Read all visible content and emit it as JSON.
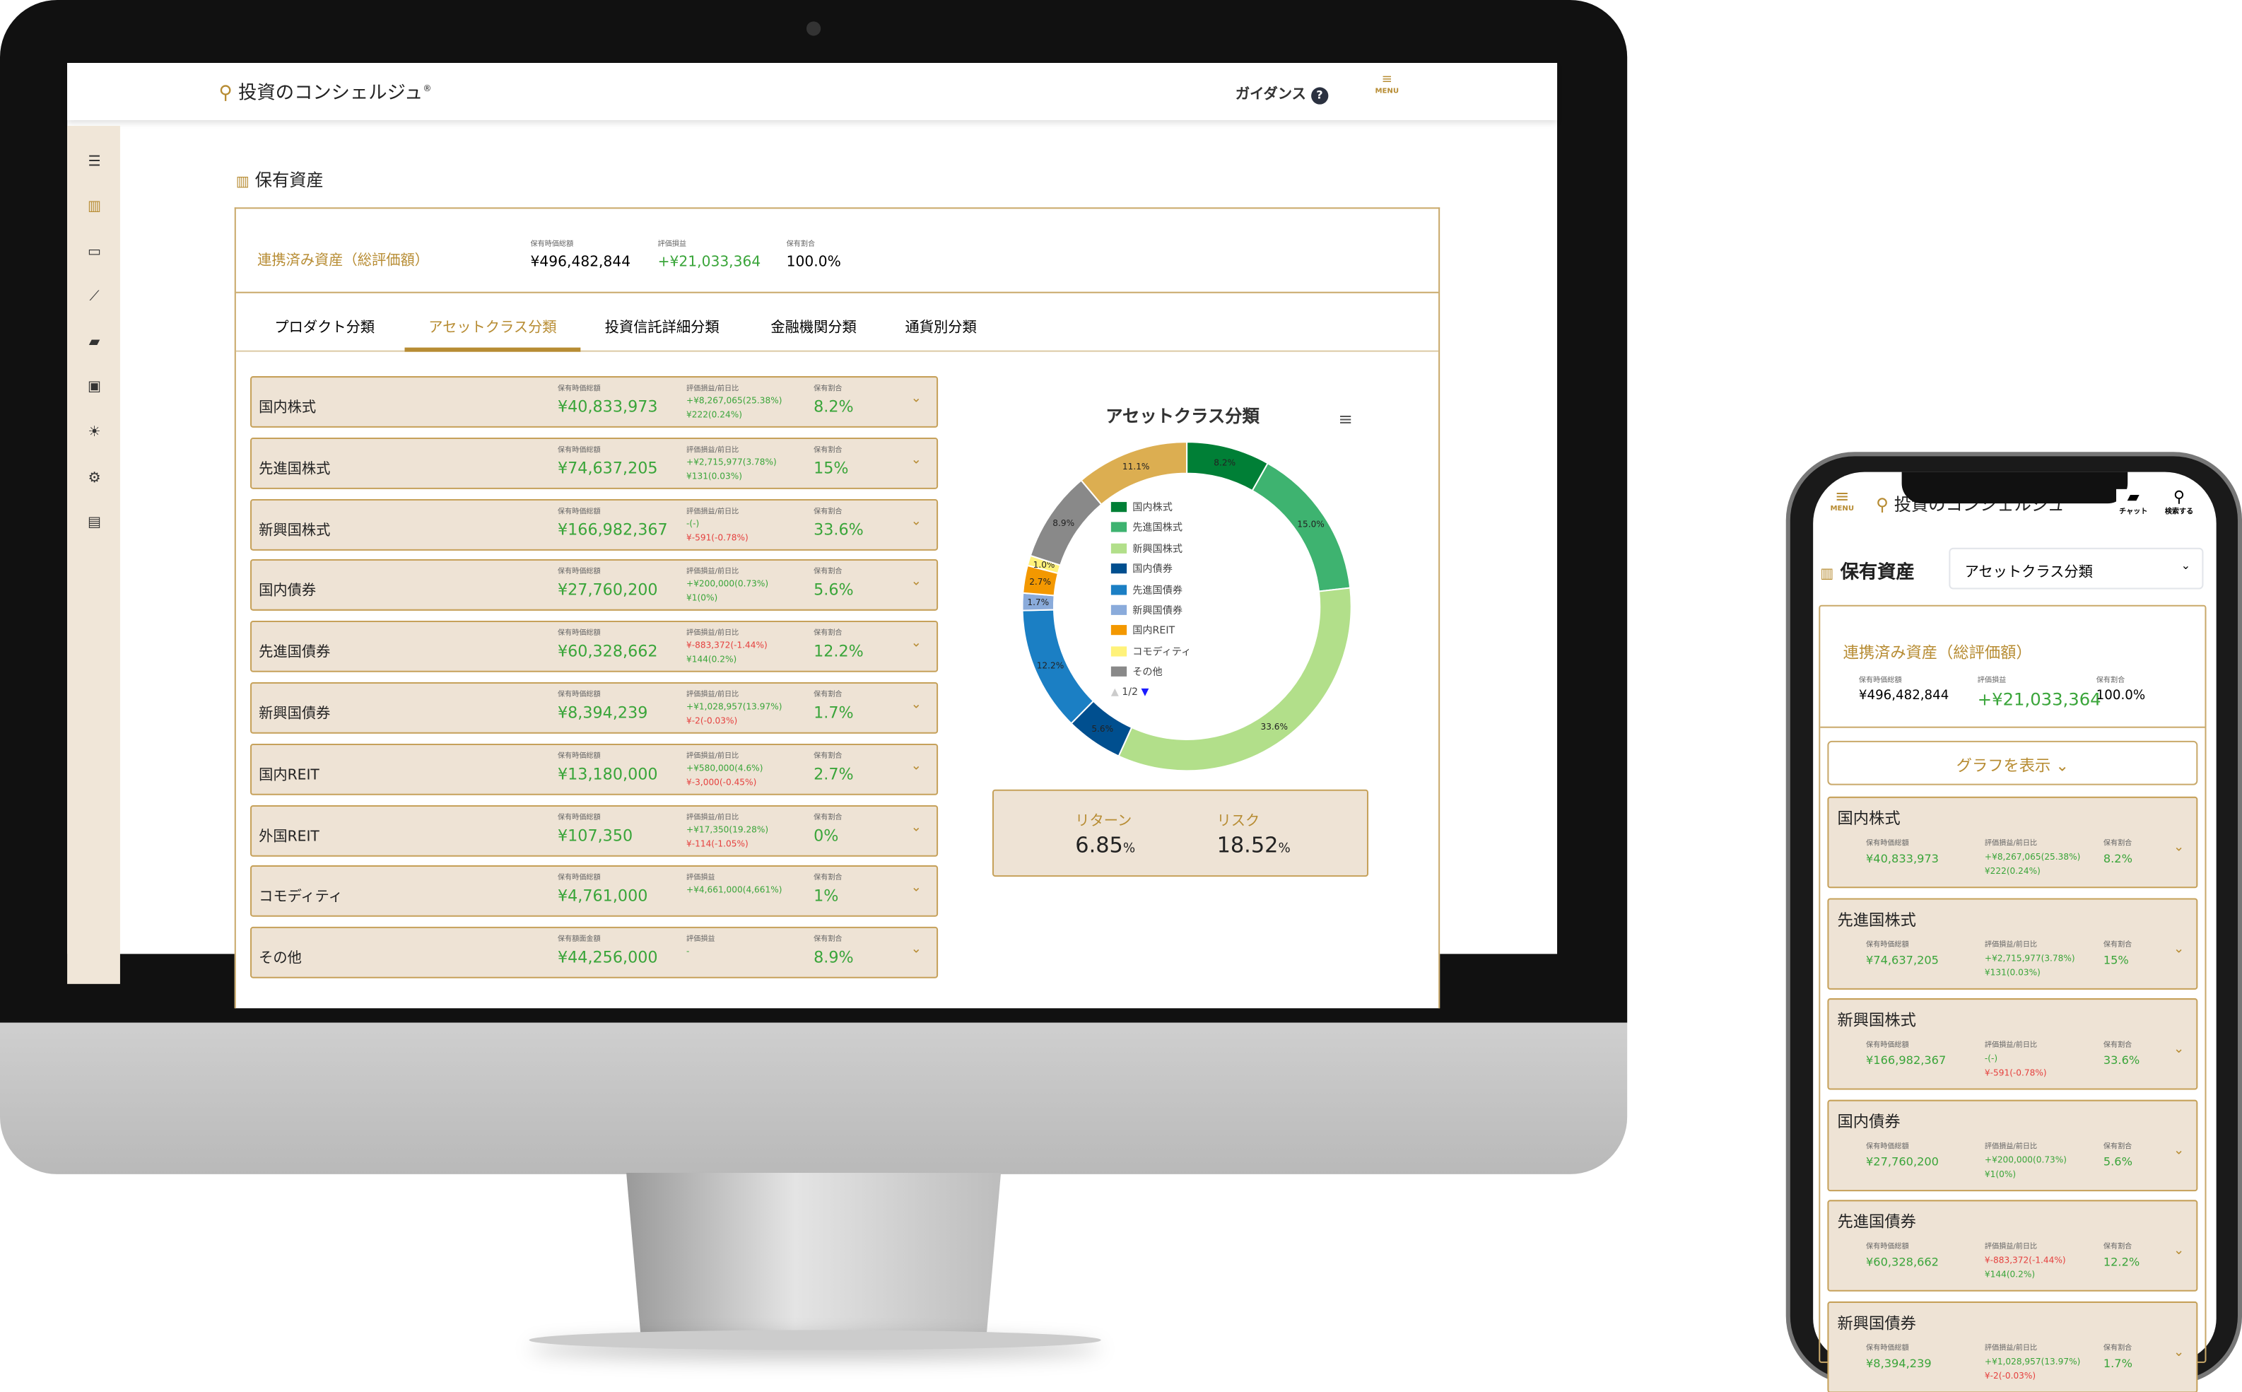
{
  "app": {
    "logo": "投資のコンシェルジュ",
    "registered": "®",
    "guidance": "ガイダンス",
    "guidance_icon": "?",
    "menu": "MENU"
  },
  "sidebar": {
    "icons": [
      "hamburger-icon",
      "chart-icon",
      "card-icon",
      "line-chart-icon",
      "chat-icon",
      "contact-icon",
      "bulb-icon",
      "gear-icon",
      "document-icon"
    ]
  },
  "page": {
    "title": "保有資産"
  },
  "summary": {
    "title": "連携済み資産（総評価額）",
    "value_label": "保有時価総額",
    "value": "¥496,482,844",
    "pl_label": "評価損益",
    "pl": "+¥21,033,364",
    "ratio_label": "保有割合",
    "ratio": "100.0%"
  },
  "tabs": [
    {
      "label": "プロダクト分類"
    },
    {
      "label": "アセットクラス分類",
      "active": true
    },
    {
      "label": "投資信託詳細分類"
    },
    {
      "label": "金融機関分類"
    },
    {
      "label": "通貨別分類"
    }
  ],
  "rows": [
    {
      "name": "国内株式",
      "value_label": "保有時価総額",
      "value": "¥40,833,973",
      "pl_label": "評価損益/前日比",
      "pl": "+¥8,267,065(25.38%)",
      "pl_color": "g",
      "day": "¥222(0.24%)",
      "day_color": "g",
      "ratio_label": "保有割合",
      "ratio": "8.2%"
    },
    {
      "name": "先進国株式",
      "value_label": "保有時価総額",
      "value": "¥74,637,205",
      "pl_label": "評価損益/前日比",
      "pl": "+¥2,715,977(3.78%)",
      "pl_color": "g",
      "day": "¥131(0.03%)",
      "day_color": "g",
      "ratio_label": "保有割合",
      "ratio": "15%"
    },
    {
      "name": "新興国株式",
      "value_label": "保有時価総額",
      "value": "¥166,982,367",
      "pl_label": "評価損益/前日比",
      "pl": "-(-)",
      "pl_color": "g",
      "day": "¥-591(-0.78%)",
      "day_color": "r",
      "ratio_label": "保有割合",
      "ratio": "33.6%"
    },
    {
      "name": "国内債券",
      "value_label": "保有時価総額",
      "value": "¥27,760,200",
      "pl_label": "評価損益/前日比",
      "pl": "+¥200,000(0.73%)",
      "pl_color": "g",
      "day": "¥1(0%)",
      "day_color": "g",
      "ratio_label": "保有割合",
      "ratio": "5.6%"
    },
    {
      "name": "先進国債券",
      "value_label": "保有時価総額",
      "value": "¥60,328,662",
      "pl_label": "評価損益/前日比",
      "pl": "¥-883,372(-1.44%)",
      "pl_color": "r",
      "day": "¥144(0.2%)",
      "day_color": "g",
      "ratio_label": "保有割合",
      "ratio": "12.2%"
    },
    {
      "name": "新興国債券",
      "value_label": "保有時価総額",
      "value": "¥8,394,239",
      "pl_label": "評価損益/前日比",
      "pl": "+¥1,028,957(13.97%)",
      "pl_color": "g",
      "day": "¥-2(-0.03%)",
      "day_color": "r",
      "ratio_label": "保有割合",
      "ratio": "1.7%"
    },
    {
      "name": "国内REIT",
      "value_label": "保有時価総額",
      "value": "¥13,180,000",
      "pl_label": "評価損益/前日比",
      "pl": "+¥580,000(4.6%)",
      "pl_color": "g",
      "day": "¥-3,000(-0.45%)",
      "day_color": "r",
      "ratio_label": "保有割合",
      "ratio": "2.7%"
    },
    {
      "name": "外国REIT",
      "value_label": "保有時価総額",
      "value": "¥107,350",
      "pl_label": "評価損益/前日比",
      "pl": "+¥17,350(19.28%)",
      "pl_color": "g",
      "day": "¥-114(-1.05%)",
      "day_color": "r",
      "ratio_label": "保有割合",
      "ratio": "0%"
    },
    {
      "name": "コモディティ",
      "value_label": "保有時価総額",
      "value": "¥4,761,000",
      "pl_label": "評価損益",
      "pl": "+¥4,661,000(4,661%)",
      "pl_color": "g",
      "day": "",
      "day_color": "g",
      "ratio_label": "保有割合",
      "ratio": "1%"
    },
    {
      "name": "その他",
      "value_label": "保有額面金額",
      "value": "¥44,256,000",
      "pl_label": "評価損益",
      "pl": "-",
      "pl_color": "g",
      "day": "",
      "day_color": "g",
      "ratio_label": "保有割合",
      "ratio": "8.9%"
    }
  ],
  "chart_data": {
    "type": "pie",
    "title": "アセットクラス分類",
    "donut": true,
    "slices": [
      {
        "name": "国内株式",
        "value": 8.2,
        "label": "8.2%",
        "color": "#007f36"
      },
      {
        "name": "先進国株式",
        "value": 15.0,
        "label": "15.0%",
        "color": "#3eb370"
      },
      {
        "name": "新興国株式",
        "value": 33.6,
        "label": "33.6%",
        "color": "#b2df8a"
      },
      {
        "name": "国内債券",
        "value": 5.6,
        "label": "5.6%",
        "color": "#004f8f"
      },
      {
        "name": "先進国債券",
        "value": 12.2,
        "label": "12.2%",
        "color": "#1b7fc4"
      },
      {
        "name": "新興国債券",
        "value": 1.7,
        "label": "1.7%",
        "color": "#8aabdb"
      },
      {
        "name": "国内REIT",
        "value": 2.7,
        "label": "2.7%",
        "color": "#f39800"
      },
      {
        "name": "コモディティ",
        "value": 1.0,
        "label": "1.0%",
        "color": "#fff27a"
      },
      {
        "name": "その他",
        "value": 8.9,
        "label": "8.9%",
        "color": "#898989"
      },
      {
        "name": "",
        "value": 11.1,
        "label": "11.1%",
        "color": "#dcae51"
      }
    ],
    "legend_page": "1/2",
    "legend_placement": "center"
  },
  "metrics": {
    "return_label": "リターン",
    "return_value": "6.85",
    "risk_label": "リスク",
    "risk_value": "18.52",
    "unit": "%"
  },
  "mobile": {
    "menu": "MENU",
    "chat": "チャット",
    "search": "検索する",
    "select_value": "アセットクラス分類",
    "show_graph": "グラフを表示"
  },
  "colors": {
    "accent": "#b78c33",
    "positive": "#3aa53a",
    "negative": "#e5413f",
    "row_bg": "#eee3d5"
  }
}
